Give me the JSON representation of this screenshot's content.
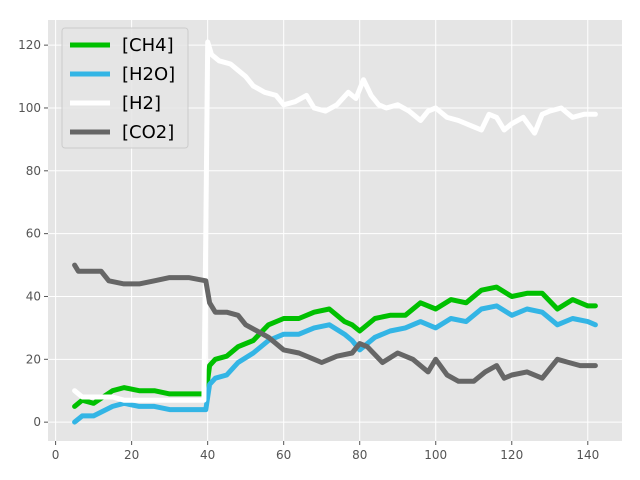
{
  "chart_data": {
    "type": "line",
    "title": "",
    "xlabel": "",
    "ylabel": "",
    "xlim": [
      -2,
      149
    ],
    "ylim": [
      -6,
      128
    ],
    "xticks": [
      0,
      20,
      40,
      60,
      80,
      100,
      120,
      140
    ],
    "yticks": [
      0,
      20,
      40,
      60,
      80,
      100,
      120
    ],
    "grid": true,
    "background": "#e5e5e5",
    "legend_position": "top-left",
    "series": [
      {
        "name": "[CH4]",
        "color": "#00c000",
        "x": [
          5,
          7,
          10,
          15,
          18,
          22,
          26,
          30,
          35,
          39.5,
          40.5,
          42,
          45,
          48,
          52,
          56,
          60,
          64,
          68,
          72,
          76,
          78,
          80,
          84,
          88,
          92,
          96,
          100,
          104,
          108,
          112,
          116,
          120,
          124,
          128,
          132,
          136,
          140,
          142
        ],
        "y": [
          5,
          7,
          6,
          10,
          11,
          10,
          10,
          9,
          9,
          9,
          18,
          20,
          21,
          24,
          26,
          31,
          33,
          33,
          35,
          36,
          32,
          31,
          29,
          33,
          34,
          34,
          38,
          36,
          39,
          38,
          42,
          43,
          40,
          41,
          41,
          36,
          39,
          37,
          37
        ]
      },
      {
        "name": "[H2O]",
        "color": "#33b5e5",
        "x": [
          5,
          7,
          10,
          15,
          18,
          22,
          26,
          30,
          35,
          39.5,
          40.5,
          42,
          45,
          48,
          52,
          56,
          60,
          64,
          68,
          72,
          76,
          78,
          80,
          84,
          88,
          92,
          96,
          100,
          104,
          108,
          112,
          116,
          120,
          124,
          128,
          132,
          136,
          140,
          142
        ],
        "y": [
          0,
          2,
          2,
          5,
          6,
          5,
          5,
          4,
          4,
          4,
          12,
          14,
          15,
          19,
          22,
          26,
          28,
          28,
          30,
          31,
          28,
          26,
          23,
          27,
          29,
          30,
          32,
          30,
          33,
          32,
          36,
          37,
          34,
          36,
          35,
          31,
          33,
          32,
          31
        ]
      },
      {
        "name": "[H2]",
        "color": "#ffffff",
        "x": [
          5,
          7,
          10,
          15,
          18,
          22,
          26,
          30,
          35,
          39,
          39.5,
          40,
          41,
          43,
          46,
          48,
          50,
          52,
          55,
          58,
          60,
          63,
          66,
          68,
          71,
          74,
          77,
          79,
          81,
          83,
          85,
          87,
          90,
          93,
          96,
          98,
          100,
          103,
          106,
          110,
          112,
          114,
          116,
          118,
          120,
          123,
          126,
          128,
          130,
          133,
          136,
          139,
          142
        ],
        "y": [
          10,
          8,
          8,
          8,
          7,
          7,
          7,
          7,
          7,
          7,
          60,
          121,
          117,
          115,
          114,
          112,
          110,
          107,
          105,
          104,
          101,
          102,
          104,
          100,
          99,
          101,
          105,
          103,
          109,
          104,
          101,
          100,
          101,
          99,
          96,
          99,
          100,
          97,
          96,
          94,
          93,
          98,
          97,
          93,
          95,
          97,
          92,
          98,
          99,
          100,
          97,
          98,
          98
        ]
      },
      {
        "name": "[CO2]",
        "color": "#666666",
        "x": [
          5,
          6,
          8,
          12,
          14,
          18,
          22,
          26,
          30,
          35,
          39.5,
          40.5,
          42,
          45,
          48,
          50,
          53,
          56,
          60,
          64,
          68,
          70,
          74,
          78,
          80,
          82,
          86,
          90,
          94,
          98,
          100,
          103,
          106,
          110,
          113,
          116,
          118,
          120,
          124,
          128,
          130,
          132,
          135,
          138,
          142
        ],
        "y": [
          50,
          48,
          48,
          48,
          45,
          44,
          44,
          45,
          46,
          46,
          45,
          38,
          35,
          35,
          34,
          31,
          29,
          27,
          23,
          22,
          20,
          19,
          21,
          22,
          25,
          24,
          19,
          22,
          20,
          16,
          20,
          15,
          13,
          13,
          16,
          18,
          14,
          15,
          16,
          14,
          17,
          20,
          19,
          18,
          18
        ]
      }
    ]
  }
}
